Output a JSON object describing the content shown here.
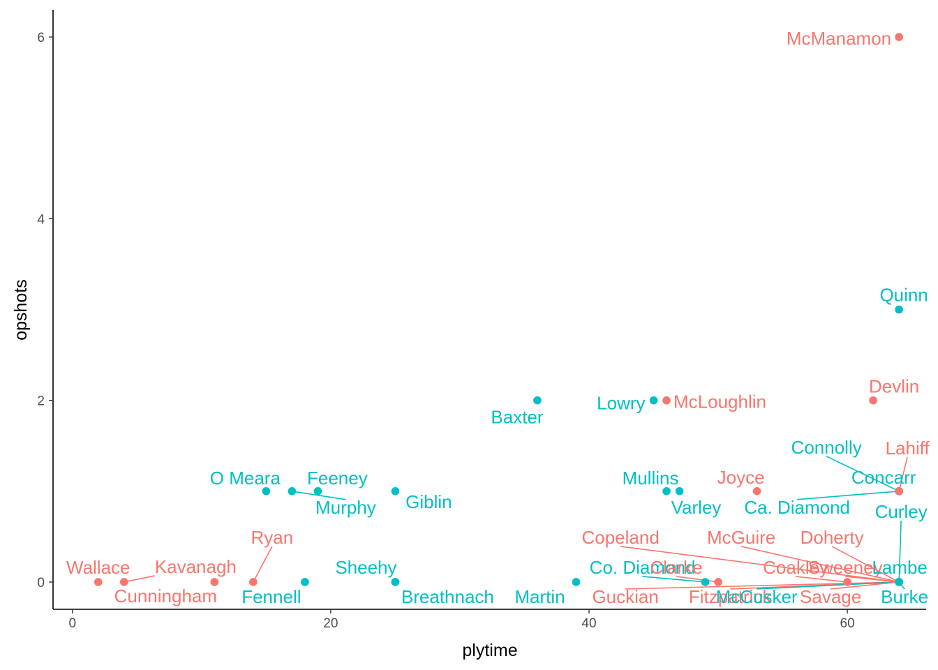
{
  "chart_data": {
    "type": "scatter",
    "title": "",
    "xlabel": "plytime",
    "ylabel": "opshots",
    "xlim": [
      -1.5,
      66.1
    ],
    "ylim": [
      -0.3,
      6.3
    ],
    "x_ticks": [
      0,
      20,
      40,
      60
    ],
    "y_ticks": [
      0,
      2,
      4,
      6
    ],
    "grid": false,
    "legend": "none",
    "group_colors": {
      "A": "#F8766D",
      "B": "#00BFC4"
    },
    "points": [
      {
        "name": "Wallace",
        "x": 2,
        "y": 0,
        "group": "A"
      },
      {
        "name": "Kavanagh",
        "x": 4,
        "y": 0,
        "group": "A"
      },
      {
        "name": "Cunningham",
        "x": 11,
        "y": 0,
        "group": "A"
      },
      {
        "name": "Ryan",
        "x": 14,
        "y": 0,
        "group": "A"
      },
      {
        "name": "Fennell",
        "x": 18,
        "y": 0,
        "group": "B"
      },
      {
        "name": "Sheehy",
        "x": 25,
        "y": 0,
        "group": "B"
      },
      {
        "name": "Breathnach",
        "x": 25,
        "y": 0,
        "group": "B"
      },
      {
        "name": "O Meara",
        "x": 15,
        "y": 1,
        "group": "B"
      },
      {
        "name": "Murphy",
        "x": 17,
        "y": 1,
        "group": "B"
      },
      {
        "name": "Feeney",
        "x": 19,
        "y": 1,
        "group": "B"
      },
      {
        "name": "Giblin",
        "x": 25,
        "y": 1,
        "group": "B"
      },
      {
        "name": "Baxter",
        "x": 36,
        "y": 2,
        "group": "B"
      },
      {
        "name": "Lowry",
        "x": 45,
        "y": 2,
        "group": "B"
      },
      {
        "name": "McLoughlin",
        "x": 46,
        "y": 2,
        "group": "A"
      },
      {
        "name": "Mullins",
        "x": 46,
        "y": 1,
        "group": "B"
      },
      {
        "name": "Varley",
        "x": 47,
        "y": 1,
        "group": "B"
      },
      {
        "name": "Joyce",
        "x": 53,
        "y": 1,
        "group": "A"
      },
      {
        "name": "Martin",
        "x": 39,
        "y": 0,
        "group": "B"
      },
      {
        "name": "Co. Diamond",
        "x": 49,
        "y": 0,
        "group": "B"
      },
      {
        "name": "Clarke",
        "x": 50,
        "y": 0,
        "group": "A"
      },
      {
        "name": "Guckian",
        "x": 64,
        "y": 0,
        "group": "A"
      },
      {
        "name": "Fitzpatrick",
        "x": 64,
        "y": 0,
        "group": "A"
      },
      {
        "name": "McCusker",
        "x": 64,
        "y": 0,
        "group": "B"
      },
      {
        "name": "Savage",
        "x": 64,
        "y": 0,
        "group": "A"
      },
      {
        "name": "Copeland",
        "x": 64,
        "y": 0,
        "group": "A"
      },
      {
        "name": "McGuire",
        "x": 64,
        "y": 0,
        "group": "A"
      },
      {
        "name": "Coakley",
        "x": 60,
        "y": 0,
        "group": "A"
      },
      {
        "name": "Sweeney",
        "x": 64,
        "y": 0,
        "group": "A"
      },
      {
        "name": "Doherty",
        "x": 64,
        "y": 0,
        "group": "A"
      },
      {
        "name": "Lambe",
        "x": 64,
        "y": 0,
        "group": "B"
      },
      {
        "name": "Burke",
        "x": 64,
        "y": 0,
        "group": "B"
      },
      {
        "name": "Curley",
        "x": 64,
        "y": 0,
        "group": "B"
      },
      {
        "name": "Ca. Diamond",
        "x": 64,
        "y": 1,
        "group": "B"
      },
      {
        "name": "Concarr",
        "x": 64,
        "y": 1,
        "group": "B"
      },
      {
        "name": "Connolly",
        "x": 64,
        "y": 1,
        "group": "B"
      },
      {
        "name": "Lahiff",
        "x": 64,
        "y": 1,
        "group": "A"
      },
      {
        "name": "Devlin",
        "x": 62,
        "y": 2,
        "group": "A"
      },
      {
        "name": "Quinn",
        "x": 64,
        "y": 3,
        "group": "B"
      },
      {
        "name": "McManamon",
        "x": 64,
        "y": 6,
        "group": "A"
      }
    ]
  }
}
